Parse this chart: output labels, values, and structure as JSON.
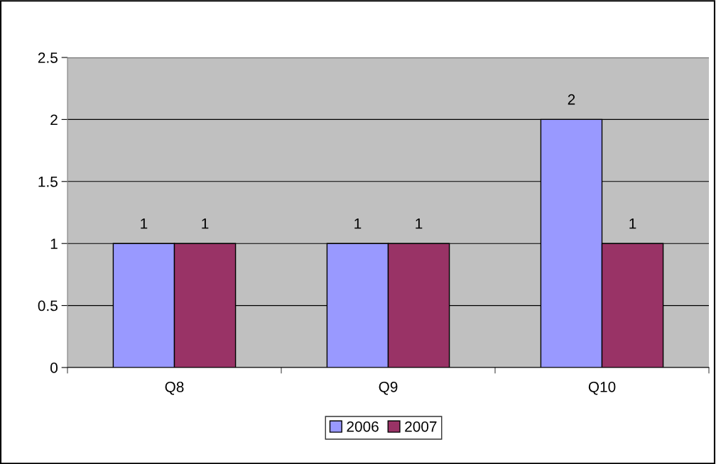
{
  "chart_data": {
    "type": "bar",
    "categories": [
      "Q8",
      "Q9",
      "Q10"
    ],
    "series": [
      {
        "name": "2006",
        "color": "#9999ff",
        "values": [
          1,
          1,
          2
        ]
      },
      {
        "name": "2007",
        "color": "#993366",
        "values": [
          1,
          1,
          1
        ]
      }
    ],
    "ylim": [
      0,
      2.5
    ],
    "yticks": [
      0,
      0.5,
      1,
      1.5,
      2,
      2.5
    ],
    "grid": "y",
    "data_labels": true,
    "legend": "bottom"
  }
}
